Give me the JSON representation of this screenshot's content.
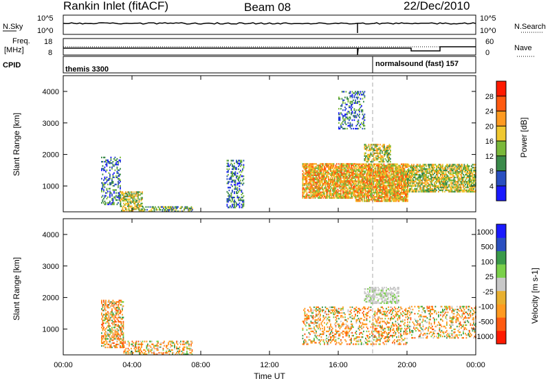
{
  "header": {
    "title": "Rankin Inlet (fitACF)",
    "beam": "Beam 08",
    "date": "22/Dec/2010"
  },
  "strip_labels": {
    "nsky": "N.Sky",
    "nsky_t1": "10^5",
    "nsky_t0": "10^0",
    "nsearch": "N.Search",
    "freq_line1": "Freq.",
    "freq_line2": "[MHz]",
    "freq_t_hi": "18",
    "freq_t_lo": "8",
    "nave": "Nave",
    "nave_t_hi": "60",
    "nave_t_lo": "0",
    "cpid": "CPID",
    "mode1": "themis 3300",
    "mode2": "normalsound (fast) 157"
  },
  "x_axis": {
    "label": "Time UT",
    "ticks": [
      "00:00",
      "04:00",
      "08:00",
      "12:00",
      "16:00",
      "20:00",
      "00:00"
    ]
  },
  "colors": {
    "power": [
      "#1a1aff",
      "#2a4fc0",
      "#3a8a4a",
      "#7ab83a",
      "#f0c830",
      "#ff9a20",
      "#ff5a10",
      "#ff1a00"
    ],
    "velocity": [
      "#ff1a00",
      "#ff5a10",
      "#ff9a20",
      "#e8b030",
      "#c8c8c8",
      "#7ad04a",
      "#3a9a4a",
      "#2a4fc0",
      "#1a1aff"
    ]
  },
  "chart_data": [
    {
      "type": "heatmap",
      "title": "Power",
      "xlabel": "Time UT",
      "ylabel": "Slant Range [km]",
      "xlim": [
        "00:00",
        "24:00"
      ],
      "ylim": [
        180,
        4500
      ],
      "y_ticks": [
        1000,
        2000,
        3000,
        4000
      ],
      "colorbar": {
        "label": "Power [dB]",
        "ticks": [
          4,
          8,
          12,
          16,
          20,
          24,
          28
        ],
        "range": [
          0,
          32
        ]
      },
      "scatter_regions": [
        {
          "t_start": 2.2,
          "t_end": 3.3,
          "r_min": 400,
          "r_max": 1900,
          "level": 0.35
        },
        {
          "t_start": 3.3,
          "t_end": 4.6,
          "r_min": 200,
          "r_max": 800,
          "level": 0.6
        },
        {
          "t_start": 4.6,
          "t_end": 7.5,
          "r_min": 180,
          "r_max": 350,
          "level": 0.55
        },
        {
          "t_start": 9.5,
          "t_end": 10.5,
          "r_min": 300,
          "r_max": 1800,
          "level": 0.4
        },
        {
          "t_start": 13.9,
          "t_end": 17.0,
          "r_min": 600,
          "r_max": 1700,
          "level": 0.8
        },
        {
          "t_start": 17.0,
          "t_end": 20.0,
          "r_min": 500,
          "r_max": 1700,
          "level": 0.85
        },
        {
          "t_start": 17.5,
          "t_end": 19.0,
          "r_min": 1750,
          "r_max": 2300,
          "level": 0.6
        },
        {
          "t_start": 20.0,
          "t_end": 24.0,
          "r_min": 800,
          "r_max": 1700,
          "level": 0.7
        },
        {
          "t_start": 16.0,
          "t_end": 17.5,
          "r_min": 2800,
          "r_max": 4000,
          "level": 0.3
        }
      ]
    },
    {
      "type": "heatmap",
      "title": "Velocity",
      "xlabel": "Time UT",
      "ylabel": "Slant Range [km]",
      "xlim": [
        "00:00",
        "24:00"
      ],
      "ylim": [
        180,
        4500
      ],
      "y_ticks": [
        1000,
        2000,
        3000,
        4000
      ],
      "colorbar": {
        "label": "Velocity [m s-1]",
        "ticks": [
          1000,
          500,
          100,
          25,
          -25,
          -100,
          -500,
          -1000
        ]
      },
      "scatter_regions": [
        {
          "t_start": 2.2,
          "t_end": 3.5,
          "r_min": 400,
          "r_max": 1900,
          "level": 0.5
        },
        {
          "t_start": 3.5,
          "t_end": 7.5,
          "r_min": 180,
          "r_max": 600,
          "level": 0.4
        },
        {
          "t_start": 13.9,
          "t_end": 20.0,
          "r_min": 500,
          "r_max": 1700,
          "level": 0.3
        },
        {
          "t_start": 17.5,
          "t_end": 19.5,
          "r_min": 1800,
          "r_max": 2300,
          "level": 0.5
        },
        {
          "t_start": 20.0,
          "t_end": 24.0,
          "r_min": 700,
          "r_max": 1700,
          "level": 0.3
        }
      ]
    }
  ]
}
